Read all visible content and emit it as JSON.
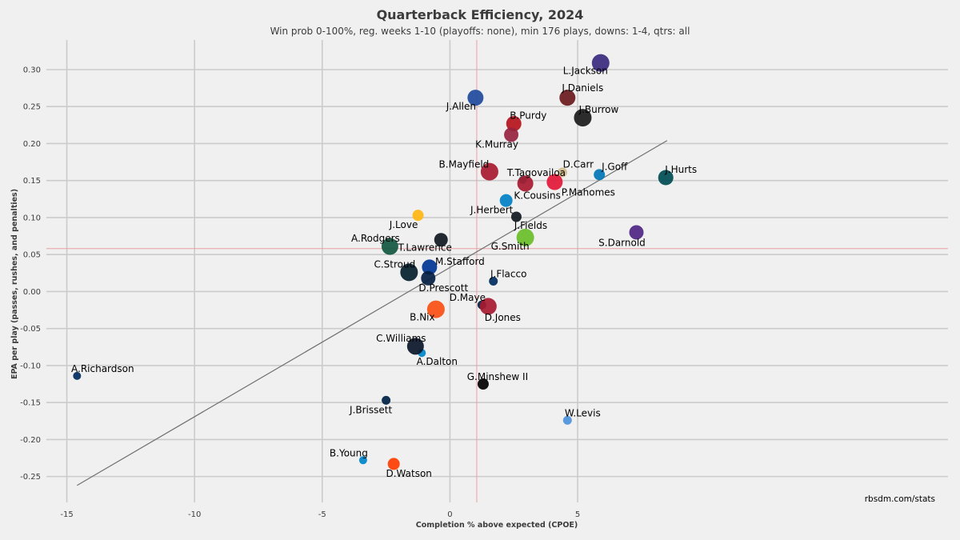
{
  "chart_data": {
    "type": "scatter",
    "title": "Quarterback Efficiency, 2024",
    "subtitle": "Win prob 0-100%, reg. weeks 1-10 (playoffs: none), min 176 plays, downs: 1-4, qtrs: all",
    "xlabel": "Completion % above expected (CPOE)",
    "ylabel": "EPA per play (passes, rushes, and penalties)",
    "xlim": [
      -15.8,
      19.5
    ],
    "ylim": [
      -0.285,
      0.34
    ],
    "xticks": [
      -15,
      -10,
      -5,
      0,
      5
    ],
    "yticks": [
      -0.25,
      -0.2,
      -0.15,
      -0.1,
      -0.05,
      0.0,
      0.05,
      0.1,
      0.15,
      0.2,
      0.25,
      0.3
    ],
    "grid": true,
    "mean_x": 1.05,
    "mean_y": 0.058,
    "trendline": {
      "x": [
        -14.6,
        8.5
      ],
      "y": [
        -0.262,
        0.204
      ]
    },
    "credit": "rbsdm.com/stats",
    "points": [
      {
        "name": "L.Jackson",
        "x": 5.9,
        "y": 0.309,
        "color": "#3b2a7e",
        "size": 11
      },
      {
        "name": "J.Daniels",
        "x": 4.6,
        "y": 0.262,
        "color": "#6a1a1d",
        "size": 10
      },
      {
        "name": "J.Allen",
        "x": 1.0,
        "y": 0.262,
        "color": "#1f4a9c",
        "size": 10
      },
      {
        "name": "J.Burrow",
        "x": 5.2,
        "y": 0.235,
        "color": "#1b1b1b",
        "size": 11
      },
      {
        "name": "B.Purdy",
        "x": 2.5,
        "y": 0.227,
        "color": "#b5121b",
        "size": 9.5
      },
      {
        "name": "K.Murray",
        "x": 2.4,
        "y": 0.212,
        "color": "#97233f",
        "size": 9
      },
      {
        "name": "D.Carr",
        "x": 4.4,
        "y": 0.161,
        "color": "#d3bc8d",
        "size": 6
      },
      {
        "name": "B.Mayfield",
        "x": 1.55,
        "y": 0.162,
        "color": "#a71930",
        "size": 11
      },
      {
        "name": "J.Goff",
        "x": 5.85,
        "y": 0.158,
        "color": "#0076b6",
        "size": 7
      },
      {
        "name": "J.Hurts",
        "x": 8.45,
        "y": 0.154,
        "color": "#004c54",
        "size": 9.5
      },
      {
        "name": "T.Tagovailoa",
        "x": 2.85,
        "y": 0.151,
        "color": "#008e97",
        "size": 5
      },
      {
        "name": "K.Cousins",
        "x": 2.95,
        "y": 0.146,
        "color": "#a71930",
        "size": 10
      },
      {
        "name": "P.Mahomes",
        "x": 4.1,
        "y": 0.148,
        "color": "#e31837",
        "size": 10
      },
      {
        "name": "J.Herbert",
        "x": 2.2,
        "y": 0.123,
        "color": "#0080c6",
        "size": 8
      },
      {
        "name": "J.Love",
        "x": -1.25,
        "y": 0.103,
        "color": "#ffb612",
        "size": 7
      },
      {
        "name": "J.Fields",
        "x": 2.6,
        "y": 0.101,
        "color": "#101820",
        "size": 6.5
      },
      {
        "name": "S.Darnold",
        "x": 7.3,
        "y": 0.08,
        "color": "#4f2683",
        "size": 9
      },
      {
        "name": "G.Smith",
        "x": 2.95,
        "y": 0.073,
        "color": "#69be28",
        "size": 11
      },
      {
        "name": "T.Lawrence",
        "x": -0.35,
        "y": 0.07,
        "color": "#101820",
        "size": 8.5
      },
      {
        "name": "A.Rodgers",
        "x": -2.35,
        "y": 0.061,
        "color": "#125740",
        "size": 10.5
      },
      {
        "name": "M.Stafford",
        "x": -0.8,
        "y": 0.033,
        "color": "#003594",
        "size": 9.5
      },
      {
        "name": "C.Stroud",
        "x": -1.6,
        "y": 0.026,
        "color": "#03202f",
        "size": 11
      },
      {
        "name": "D.Prescott",
        "x": -0.85,
        "y": 0.018,
        "color": "#041e42",
        "size": 9
      },
      {
        "name": "J.Flacco",
        "x": 1.7,
        "y": 0.014,
        "color": "#002c5f",
        "size": 5.5
      },
      {
        "name": "D.Maye",
        "x": 1.25,
        "y": -0.018,
        "color": "#002244",
        "size": 5.5
      },
      {
        "name": "D.Jones",
        "x": 1.5,
        "y": -0.02,
        "color": "#a71930",
        "size": 10.5
      },
      {
        "name": "B.Nix",
        "x": -0.55,
        "y": -0.024,
        "color": "#fb4f14",
        "size": 11
      },
      {
        "name": "A.Dalton",
        "x": -1.1,
        "y": -0.083,
        "color": "#0085ca",
        "size": 5
      },
      {
        "name": "C.Williams",
        "x": -1.35,
        "y": -0.074,
        "color": "#0b162a",
        "size": 10.5
      },
      {
        "name": "G.Minshew II",
        "x": 1.3,
        "y": -0.125,
        "color": "#000000",
        "size": 7
      },
      {
        "name": "A.Richardson",
        "x": -14.6,
        "y": -0.114,
        "color": "#002c5f",
        "size": 5
      },
      {
        "name": "J.Brissett",
        "x": -2.5,
        "y": -0.147,
        "color": "#002244",
        "size": 5.5
      },
      {
        "name": "W.Levis",
        "x": 4.6,
        "y": -0.174,
        "color": "#4b92db",
        "size": 5.5
      },
      {
        "name": "B.Young",
        "x": -3.4,
        "y": -0.228,
        "color": "#0085ca",
        "size": 5
      },
      {
        "name": "D.Watson",
        "x": -2.2,
        "y": -0.233,
        "color": "#ff3c00",
        "size": 7.5
      }
    ]
  }
}
